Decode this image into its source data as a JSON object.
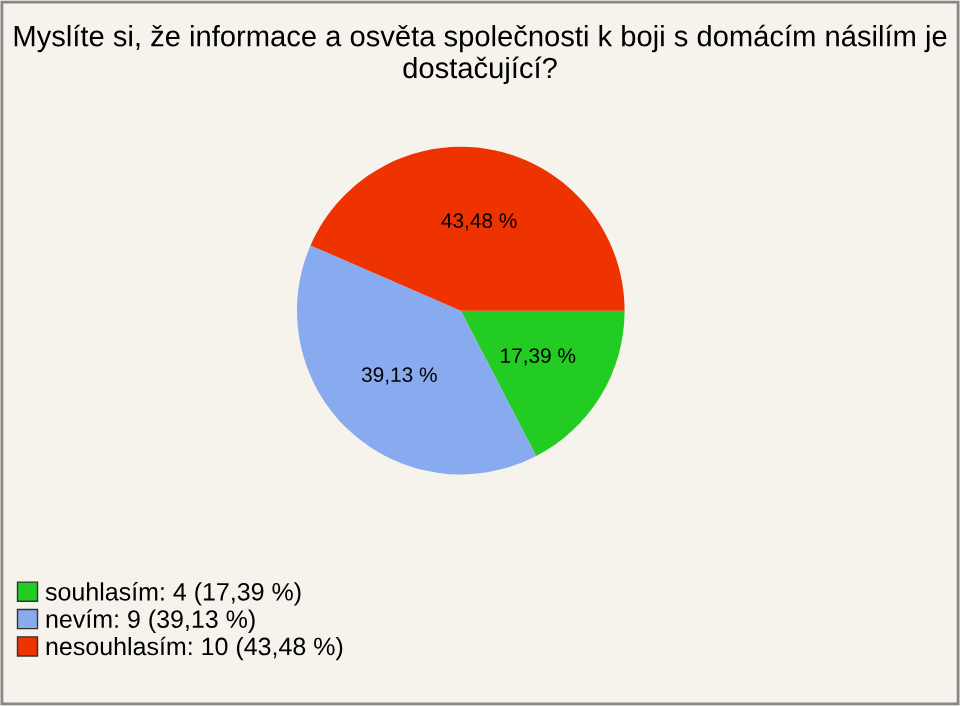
{
  "chart_data": {
    "type": "pie",
    "title": "Myslíte si, že informace a osvěta společnosti k boji s domácím násilím je dostačující?",
    "categories": [
      "souhlasím: 4 (17,39 %)",
      "nevím: 9 (39,13 %)",
      "nesouhlasím: 10 (43,48 %)"
    ],
    "values": [
      17.39,
      39.13,
      43.48
    ],
    "value_labels": [
      "17,39 %",
      "39,13 %",
      "43,48 %"
    ],
    "colors": [
      "#22cc22",
      "#88aaee",
      "#ee3300"
    ],
    "legend": "bottom left"
  }
}
